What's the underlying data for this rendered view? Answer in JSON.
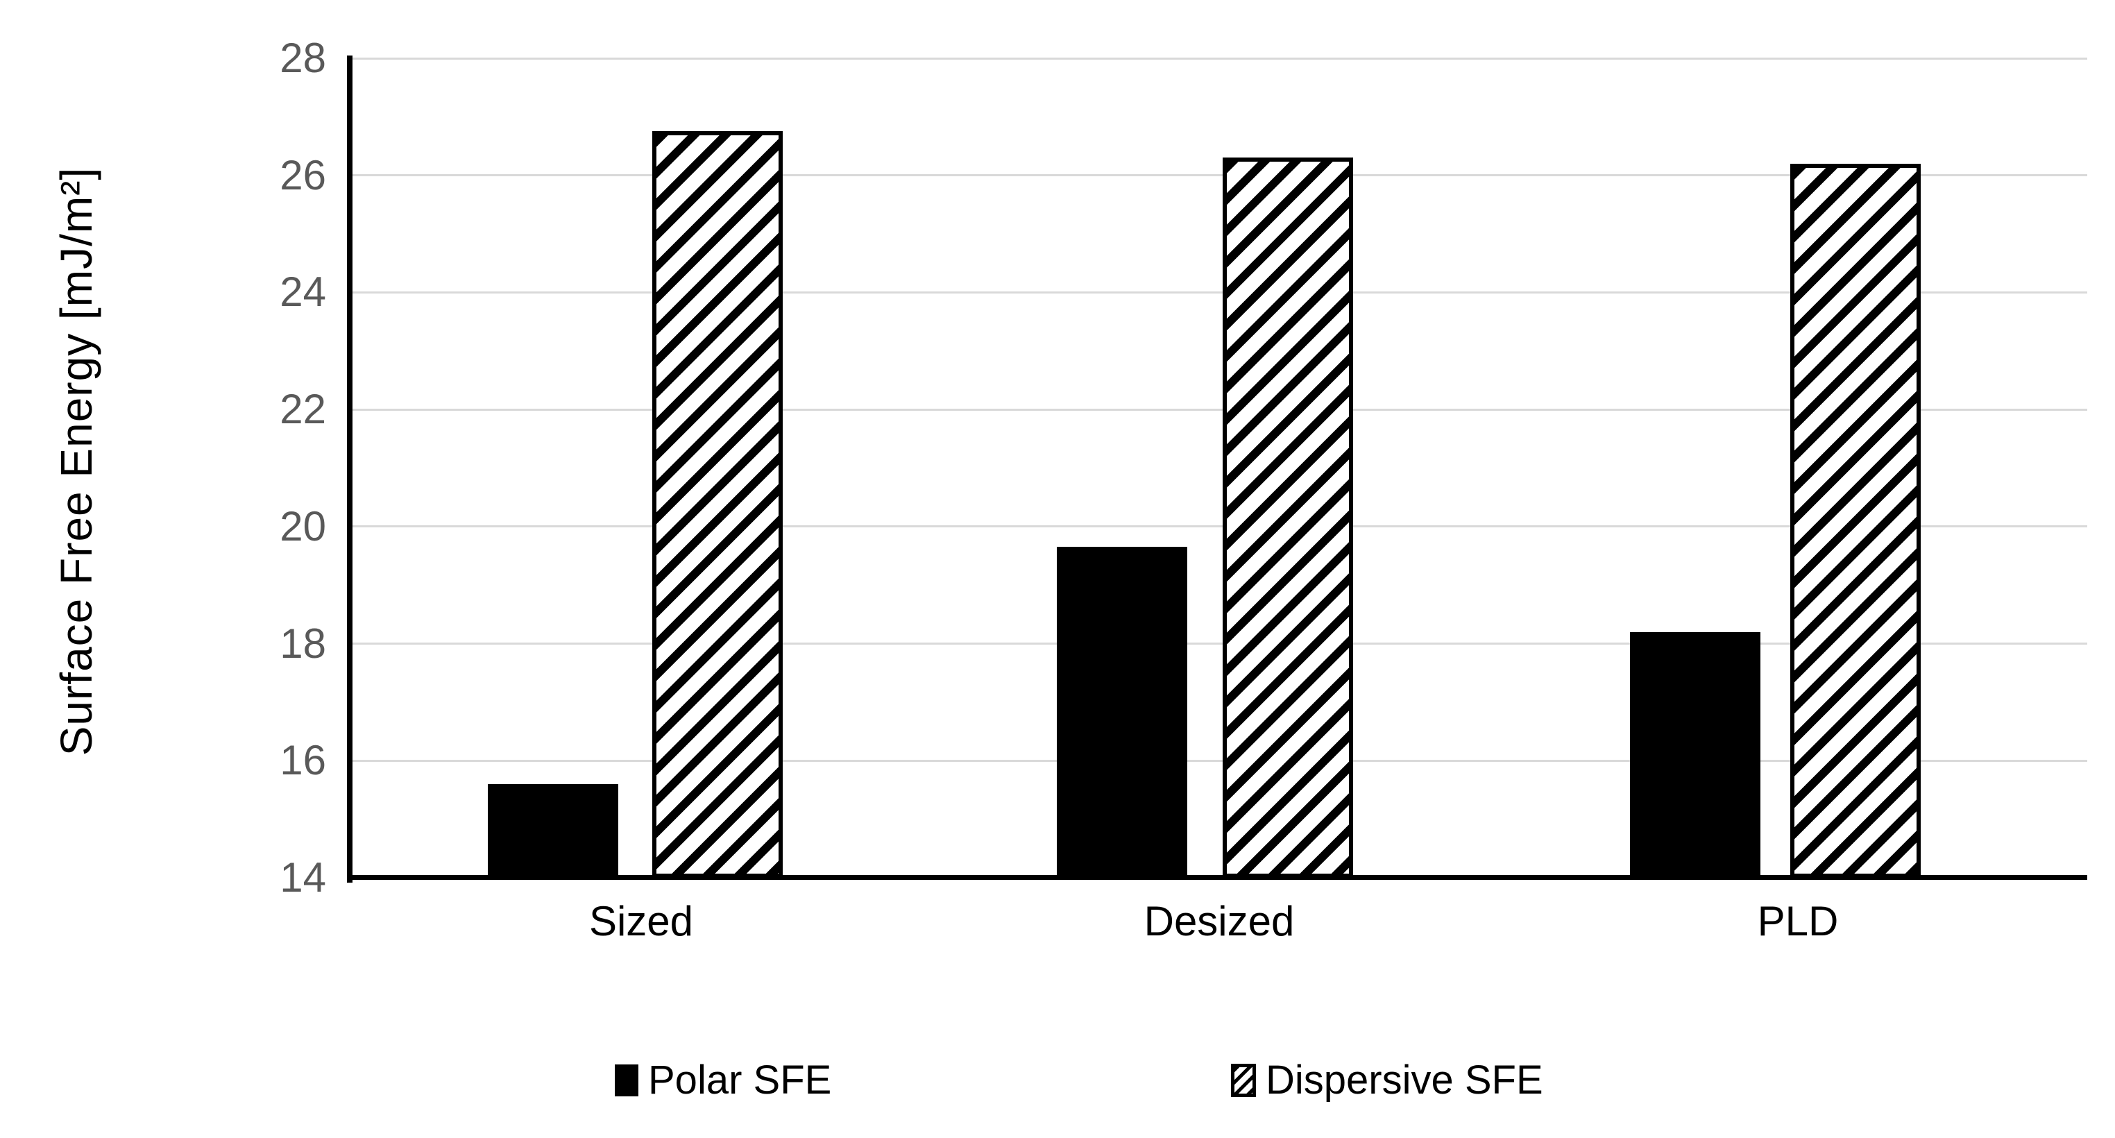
{
  "chart_data": {
    "type": "bar",
    "categories": [
      "Sized",
      "Desized",
      "PLD"
    ],
    "series": [
      {
        "name": "Polar SFE",
        "pattern": "solid",
        "color": "#000000",
        "values": [
          15.6,
          19.65,
          18.2
        ]
      },
      {
        "name": "Dispersive SFE",
        "pattern": "diagonal-hatch",
        "color": "#000000",
        "values": [
          26.75,
          26.3,
          26.2
        ]
      }
    ],
    "ylabel": "Surface Free Energy [mJ/m²]",
    "ylim": [
      14,
      28
    ],
    "yticks": [
      28,
      26,
      24,
      22,
      20,
      18,
      16,
      14
    ],
    "grid": true,
    "legend_position": "bottom",
    "colors": {
      "axis": "#000000",
      "gridline": "#d9d9d9",
      "tick_label": "#595959",
      "text": "#000000"
    }
  }
}
